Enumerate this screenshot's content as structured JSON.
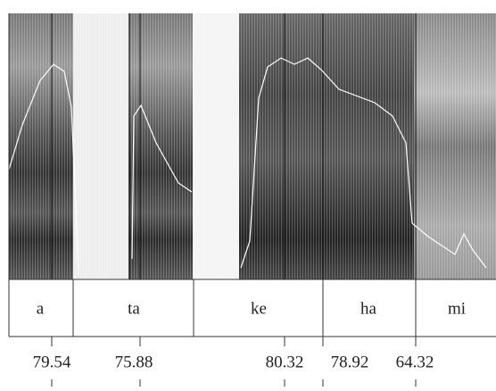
{
  "segments": [
    {
      "label": "a"
    },
    {
      "label": "ta"
    },
    {
      "label": "ke"
    },
    {
      "label": "ha"
    },
    {
      "label": "mi"
    }
  ],
  "measurements": [
    {
      "value": 79.54
    },
    {
      "value": 75.88
    },
    {
      "value": 80.32
    },
    {
      "value": 78.92
    },
    {
      "value": 64.32
    }
  ]
}
